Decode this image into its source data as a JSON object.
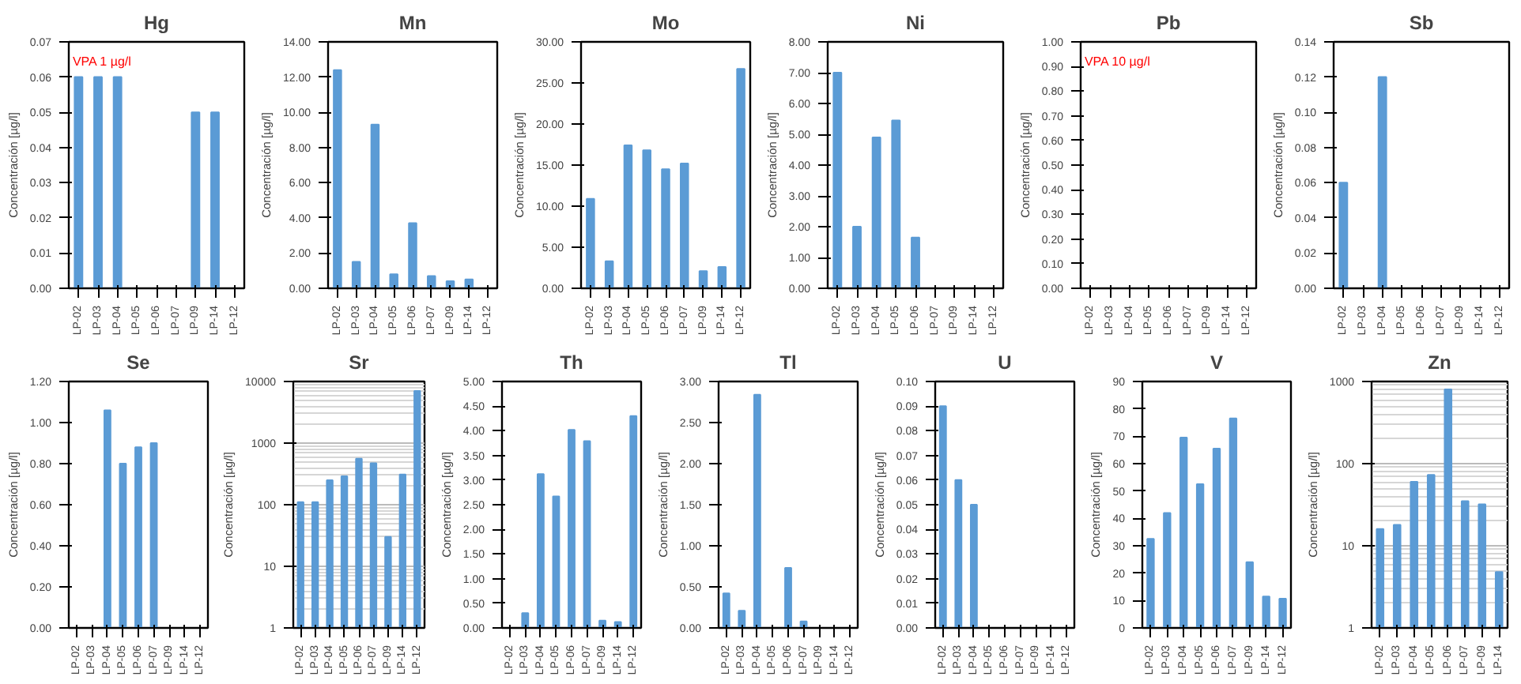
{
  "chart_data": [
    {
      "type": "bar",
      "title": "Hg",
      "ylabel": "Concentración [µg/l]",
      "categories": [
        "LP-02",
        "LP-03",
        "LP-04",
        "LP-05",
        "LP-06",
        "LP-07",
        "LP-09",
        "LP-14",
        "LP-12"
      ],
      "values": [
        0.06,
        0.06,
        0.06,
        null,
        null,
        null,
        0.05,
        0.05,
        null
      ],
      "color": "#5b9bd5",
      "ylim": [
        0,
        0.07
      ],
      "yticks": [
        {
          "value": 0,
          "label": "0.00"
        },
        0.01,
        0.02,
        0.03,
        0.04,
        0.05,
        0.06,
        0.07
      ],
      "annotations": [
        "VPA 1 µg/l"
      ],
      "grid": false
    },
    {
      "type": "bar",
      "title": "Mn",
      "ylabel": "Concentración [µg/l]",
      "categories": [
        "LP-02",
        "LP-03",
        "LP-04",
        "LP-05",
        "LP-06",
        "LP-07",
        "LP-09",
        "LP-14",
        "LP-12"
      ],
      "values": [
        12.4,
        1.5,
        9.3,
        0.8,
        3.7,
        0.7,
        0.4,
        0.5,
        null
      ],
      "color": "#5b9bd5",
      "ylim": [
        0,
        14
      ],
      "yticks": [
        {
          "value": 0,
          "label": "0.00"
        },
        {
          "value": 2,
          "label": "2.00"
        },
        {
          "value": 4,
          "label": "4.00"
        },
        {
          "value": 6,
          "label": "6.00"
        },
        {
          "value": 8,
          "label": "8.00"
        },
        {
          "value": 10,
          "label": "10.00"
        },
        {
          "value": 12,
          "label": "12.00"
        },
        {
          "value": 14,
          "label": "14.00"
        }
      ],
      "grid": false
    },
    {
      "type": "bar",
      "title": "Mo",
      "ylabel": "Concentración [µg/l]",
      "categories": [
        "LP-02",
        "LP-03",
        "LP-04",
        "LP-05",
        "LP-06",
        "LP-07",
        "LP-09",
        "LP-14",
        "LP-12"
      ],
      "values": [
        10.9,
        3.3,
        17.4,
        16.8,
        14.5,
        15.2,
        2.1,
        2.6,
        26.7
      ],
      "color": "#5b9bd5",
      "ylim": [
        0,
        30
      ],
      "yticks": [
        {
          "value": 0,
          "label": "0.00"
        },
        {
          "value": 5,
          "label": "5.00"
        },
        {
          "value": 10,
          "label": "10.00"
        },
        {
          "value": 15,
          "label": "15.00"
        },
        {
          "value": 20,
          "label": "20.00"
        },
        {
          "value": 25,
          "label": "25.00"
        },
        {
          "value": 30,
          "label": "30.00"
        }
      ],
      "grid": false
    },
    {
      "type": "bar",
      "title": "Ni",
      "ylabel": "Concentración [µg/l]",
      "categories": [
        "LP-02",
        "LP-03",
        "LP-04",
        "LP-05",
        "LP-06",
        "LP-07",
        "LP-09",
        "LP-14",
        "LP-12"
      ],
      "values": [
        7.0,
        2.0,
        4.9,
        5.45,
        1.65,
        null,
        null,
        null,
        null
      ],
      "color": "#5b9bd5",
      "ylim": [
        0,
        8
      ],
      "yticks": [
        {
          "value": 0,
          "label": "0.00"
        },
        {
          "value": 1,
          "label": "1.00"
        },
        {
          "value": 2,
          "label": "2.00"
        },
        {
          "value": 3,
          "label": "3.00"
        },
        {
          "value": 4,
          "label": "4.00"
        },
        {
          "value": 5,
          "label": "5.00"
        },
        {
          "value": 6,
          "label": "6.00"
        },
        {
          "value": 7,
          "label": "7.00"
        },
        {
          "value": 8,
          "label": "8.00"
        }
      ],
      "grid": false
    },
    {
      "type": "bar",
      "title": "Pb",
      "ylabel": "Concentración [µg/l]",
      "categories": [
        "LP-02",
        "LP-03",
        "LP-04",
        "LP-05",
        "LP-06",
        "LP-07",
        "LP-09",
        "LP-14",
        "LP-12"
      ],
      "values": [
        null,
        null,
        null,
        null,
        null,
        null,
        null,
        null,
        null
      ],
      "color": "#5b9bd5",
      "ylim": [
        0,
        1
      ],
      "yticks": [
        {
          "value": 0,
          "label": "0.00"
        },
        {
          "value": 0.1,
          "label": "0.10"
        },
        {
          "value": 0.2,
          "label": "0.20"
        },
        {
          "value": 0.3,
          "label": "0.30"
        },
        {
          "value": 0.4,
          "label": "0.40"
        },
        {
          "value": 0.5,
          "label": "0.50"
        },
        {
          "value": 0.6,
          "label": "0.60"
        },
        {
          "value": 0.7,
          "label": "0.70"
        },
        {
          "value": 0.8,
          "label": "0.80"
        },
        {
          "value": 0.9,
          "label": "0.90"
        },
        {
          "value": 1,
          "label": "1.00"
        }
      ],
      "annotations": [
        "VPA 10 µg/l"
      ],
      "grid": false
    },
    {
      "type": "bar",
      "title": "Sb",
      "ylabel": "Concentración [µg/l]",
      "categories": [
        "LP-02",
        "LP-03",
        "LP-04",
        "LP-05",
        "LP-06",
        "LP-07",
        "LP-09",
        "LP-14",
        "LP-12"
      ],
      "values": [
        0.06,
        null,
        0.12,
        null,
        null,
        null,
        null,
        null,
        null
      ],
      "color": "#5b9bd5",
      "ylim": [
        0,
        0.14
      ],
      "yticks": [
        {
          "value": 0,
          "label": "0.00"
        },
        0.02,
        0.04,
        0.06,
        0.08,
        {
          "value": 0.1,
          "label": "0.10"
        },
        0.12,
        0.14
      ],
      "grid": false
    },
    {
      "type": "bar",
      "title": "Se",
      "ylabel": "Concentración [µg/l]",
      "categories": [
        "LP-02",
        "LP-03",
        "LP-04",
        "LP-05",
        "LP-06",
        "LP-07",
        "LP-09",
        "LP-14",
        "LP-12"
      ],
      "values": [
        null,
        null,
        1.06,
        0.8,
        0.88,
        0.9,
        null,
        null,
        null
      ],
      "color": "#5b9bd5",
      "ylim": [
        0,
        1.2
      ],
      "yticks": [
        {
          "value": 0,
          "label": "0.00"
        },
        {
          "value": 0.2,
          "label": "0.20"
        },
        {
          "value": 0.4,
          "label": "0.40"
        },
        {
          "value": 0.6,
          "label": "0.60"
        },
        {
          "value": 0.8,
          "label": "0.80"
        },
        {
          "value": 1,
          "label": "1.00"
        },
        {
          "value": 1.2,
          "label": "1.20"
        }
      ],
      "grid": false
    },
    {
      "type": "bar",
      "title": "Sr",
      "ylabel": "Concentración [µg/l]",
      "categories": [
        "LP-02",
        "LP-03",
        "LP-04",
        "LP-05",
        "LP-06",
        "LP-07",
        "LP-09",
        "LP-14",
        "LP-12"
      ],
      "values": [
        110,
        110,
        250,
        290,
        560,
        470,
        30,
        310,
        7000
      ],
      "color": "#5b9bd5",
      "ylim": [
        1,
        10000
      ],
      "yticks": [
        1,
        10,
        100,
        1000,
        10000
      ],
      "log": "y",
      "grid": "y"
    },
    {
      "type": "bar",
      "title": "Th",
      "ylabel": "Concentración [µg/l]",
      "categories": [
        "LP-02",
        "LP-03",
        "LP-04",
        "LP-05",
        "LP-06",
        "LP-07",
        "LP-09",
        "LP-14",
        "LP-12"
      ],
      "values": [
        null,
        0.3,
        3.12,
        2.67,
        4.02,
        3.79,
        0.15,
        0.12,
        4.3
      ],
      "color": "#5b9bd5",
      "ylim": [
        0,
        5
      ],
      "yticks": [
        {
          "value": 0,
          "label": "0.00"
        },
        {
          "value": 0.5,
          "label": "0.50"
        },
        {
          "value": 1,
          "label": "1.00"
        },
        {
          "value": 1.5,
          "label": "1.50"
        },
        {
          "value": 2,
          "label": "2.00"
        },
        {
          "value": 2.5,
          "label": "2.50"
        },
        {
          "value": 3,
          "label": "3.00"
        },
        {
          "value": 3.5,
          "label": "3.50"
        },
        {
          "value": 4,
          "label": "4.00"
        },
        {
          "value": 4.5,
          "label": "4.50"
        },
        {
          "value": 5,
          "label": "5.00"
        }
      ],
      "grid": false
    },
    {
      "type": "bar",
      "title": "Tl",
      "ylabel": "Concentración [µg/l]",
      "categories": [
        "LP-02",
        "LP-03",
        "LP-04",
        "LP-05",
        "LP-06",
        "LP-07",
        "LP-09",
        "LP-14",
        "LP-12"
      ],
      "values": [
        0.42,
        0.21,
        2.84,
        null,
        0.73,
        0.08,
        null,
        null,
        null
      ],
      "color": "#5b9bd5",
      "ylim": [
        0,
        3
      ],
      "yticks": [
        {
          "value": 0,
          "label": "0.00"
        },
        {
          "value": 0.5,
          "label": "0.50"
        },
        {
          "value": 1,
          "label": "1.00"
        },
        {
          "value": 1.5,
          "label": "1.50"
        },
        {
          "value": 2,
          "label": "2.00"
        },
        {
          "value": 2.5,
          "label": "2.50"
        },
        {
          "value": 3,
          "label": "3.00"
        }
      ],
      "grid": false
    },
    {
      "type": "bar",
      "title": "U",
      "ylabel": "Concentración [µg/l]",
      "categories": [
        "LP-02",
        "LP-03",
        "LP-04",
        "LP-05",
        "LP-06",
        "LP-07",
        "LP-09",
        "LP-14",
        "LP-12"
      ],
      "values": [
        0.09,
        0.06,
        0.05,
        null,
        null,
        null,
        null,
        null,
        null
      ],
      "color": "#5b9bd5",
      "ylim": [
        0,
        0.1
      ],
      "yticks": [
        {
          "value": 0,
          "label": "0.00"
        },
        0.01,
        0.02,
        0.03,
        0.04,
        0.05,
        0.06,
        0.07,
        0.08,
        0.09,
        {
          "value": 0.1,
          "label": "0.10"
        }
      ],
      "grid": false
    },
    {
      "type": "bar",
      "title": "V",
      "ylabel": "Concentración [µg/l]",
      "categories": [
        "LP-02",
        "LP-03",
        "LP-04",
        "LP-05",
        "LP-06",
        "LP-07",
        "LP-09",
        "LP-14",
        "LP-12"
      ],
      "values": [
        32.5,
        42,
        69.5,
        52.5,
        65.5,
        76.5,
        24,
        11.5,
        10.7
      ],
      "color": "#5b9bd5",
      "ylim": [
        0,
        90
      ],
      "yticks": [
        0,
        10,
        20,
        30,
        40,
        50,
        60,
        70,
        80,
        90
      ],
      "grid": false
    },
    {
      "type": "bar",
      "title": "Zn",
      "ylabel": "Concentración [µg/l]",
      "categories": [
        "LP-02",
        "LP-03",
        "LP-04",
        "LP-05",
        "LP-06",
        "LP-07",
        "LP-09",
        "LP-14"
      ],
      "values": [
        16,
        18,
        60,
        73,
        800,
        35,
        32,
        4.8
      ],
      "color": "#5b9bd5",
      "ylim": [
        1,
        1000
      ],
      "yticks": [
        1,
        10,
        100,
        1000
      ],
      "log": "y",
      "grid": "y"
    }
  ]
}
